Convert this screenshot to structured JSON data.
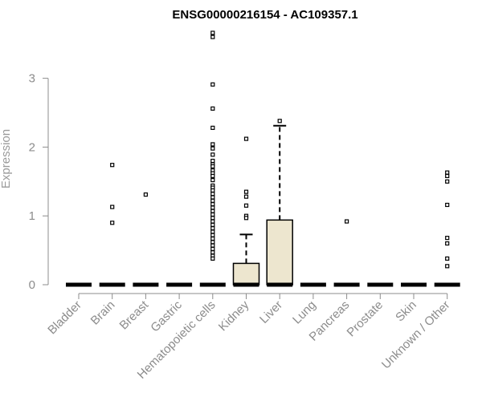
{
  "chart_data": {
    "type": "boxplot",
    "title": "ENSG00000216154 - AC109357.1",
    "xlabel": "",
    "ylabel": "Expression",
    "ylim": [
      0,
      3.7
    ],
    "yticks": [
      0,
      1,
      2,
      3
    ],
    "categories": [
      "Bladder",
      "Brain",
      "Breast",
      "Gastric",
      "Hematopoietic cells",
      "Kidney",
      "Liver",
      "Lung",
      "Pancreas",
      "Prostate",
      "Skin",
      "Unknown / Other"
    ],
    "boxes": [
      {
        "q1": 0,
        "median": 0,
        "q3": 0,
        "whisker_low": 0,
        "whisker_high": 0,
        "outliers": []
      },
      {
        "q1": 0,
        "median": 0,
        "q3": 0,
        "whisker_low": 0,
        "whisker_high": 0,
        "outliers": [
          1.74,
          1.13,
          0.9
        ]
      },
      {
        "q1": 0,
        "median": 0,
        "q3": 0,
        "whisker_low": 0,
        "whisker_high": 0,
        "outliers": [
          1.31
        ]
      },
      {
        "q1": 0,
        "median": 0,
        "q3": 0,
        "whisker_low": 0,
        "whisker_high": 0,
        "outliers": []
      },
      {
        "q1": 0,
        "median": 0,
        "q3": 0,
        "whisker_low": 0,
        "whisker_high": 0,
        "outliers": [
          3.66,
          3.6,
          2.91,
          2.56,
          2.28,
          2.04,
          1.98,
          1.89,
          1.8,
          1.75,
          1.72,
          1.66,
          1.62,
          1.58,
          1.52,
          1.44,
          1.41,
          1.37,
          1.32,
          1.27,
          1.22,
          1.17,
          1.12,
          1.07,
          1.02,
          0.97,
          0.92,
          0.87,
          0.82,
          0.77,
          0.72,
          0.67,
          0.62,
          0.57,
          0.52,
          0.47,
          0.42,
          0.38
        ]
      },
      {
        "q1": 0,
        "median": 0,
        "q3": 0.31,
        "whisker_low": 0,
        "whisker_high": 0.73,
        "outliers": [
          2.12,
          1.35,
          1.28,
          1.15,
          1.0,
          0.97
        ]
      },
      {
        "q1": 0,
        "median": 0,
        "q3": 0.94,
        "whisker_low": 0,
        "whisker_high": 2.31,
        "outliers": [
          2.38
        ]
      },
      {
        "q1": 0,
        "median": 0,
        "q3": 0,
        "whisker_low": 0,
        "whisker_high": 0,
        "outliers": []
      },
      {
        "q1": 0,
        "median": 0,
        "q3": 0,
        "whisker_low": 0,
        "whisker_high": 0,
        "outliers": [
          0.92
        ]
      },
      {
        "q1": 0,
        "median": 0,
        "q3": 0,
        "whisker_low": 0,
        "whisker_high": 0,
        "outliers": []
      },
      {
        "q1": 0,
        "median": 0,
        "q3": 0,
        "whisker_low": 0,
        "whisker_high": 0,
        "outliers": []
      },
      {
        "q1": 0,
        "median": 0,
        "q3": 0,
        "whisker_low": 0,
        "whisker_high": 0,
        "outliers": [
          1.63,
          1.58,
          1.5,
          1.16,
          0.68,
          0.6,
          0.38,
          0.27
        ]
      }
    ],
    "colors": {
      "box_fill": "#ede6cf",
      "box_stroke": "#000000",
      "axis": "#8c8c8c",
      "title": "#000000"
    },
    "grid": false,
    "legend": "none"
  }
}
